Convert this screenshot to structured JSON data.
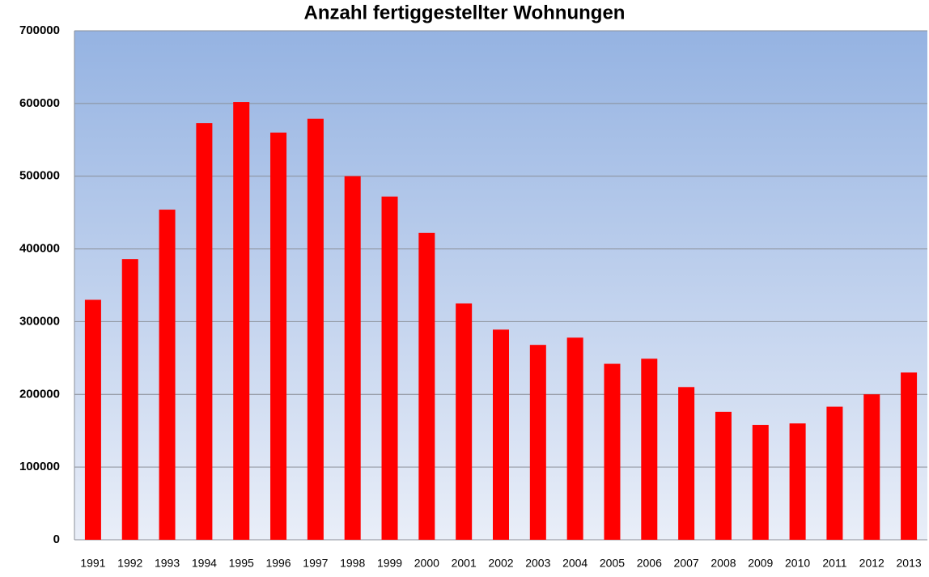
{
  "chart_data": {
    "type": "bar",
    "title": "Anzahl fertiggestellter Wohnungen",
    "categories": [
      "1991",
      "1992",
      "1993",
      "1994",
      "1995",
      "1996",
      "1997",
      "1998",
      "1999",
      "2000",
      "2001",
      "2002",
      "2003",
      "2004",
      "2005",
      "2006",
      "2007",
      "2008",
      "2009",
      "2010",
      "2011",
      "2012",
      "2013"
    ],
    "values": [
      330000,
      386000,
      454000,
      573000,
      602000,
      560000,
      579000,
      500000,
      472000,
      422000,
      325000,
      289000,
      268000,
      278000,
      242000,
      249000,
      210000,
      176000,
      158000,
      160000,
      183000,
      200000,
      230000
    ],
    "color": "#ff0000",
    "ylim": [
      0,
      700000
    ],
    "yticks": [
      0,
      100000,
      200000,
      300000,
      400000,
      500000,
      600000,
      700000
    ],
    "grid": true
  }
}
